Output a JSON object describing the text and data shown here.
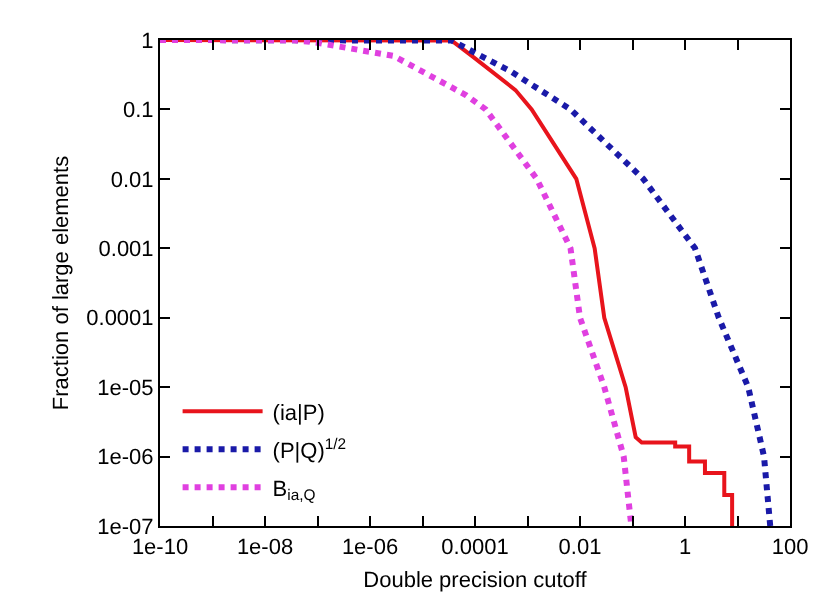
{
  "chart_data": {
    "type": "line",
    "xlabel": "Double precision cutoff",
    "ylabel": "Fraction of large elements",
    "log": "xy",
    "grid": false,
    "legend": "bottom left",
    "marker": "none",
    "xlim": [
      1e-10,
      100
    ],
    "ylim": [
      1e-07,
      1
    ],
    "xticks": [
      {
        "value": 1e-10,
        "label": "1e-10"
      },
      {
        "value": 1e-09,
        "label": null
      },
      {
        "value": 1e-08,
        "label": "1e-08"
      },
      {
        "value": 1e-07,
        "label": null
      },
      {
        "value": 1e-06,
        "label": "1e-06"
      },
      {
        "value": 1e-05,
        "label": null
      },
      {
        "value": 0.0001,
        "label": "0.0001"
      },
      {
        "value": 0.001,
        "label": null
      },
      {
        "value": 0.01,
        "label": "0.01"
      },
      {
        "value": 0.1,
        "label": null
      },
      {
        "value": 1,
        "label": "1"
      },
      {
        "value": 10,
        "label": null
      },
      {
        "value": 100,
        "label": "100"
      }
    ],
    "yticks": [
      1,
      0.1,
      0.01,
      0.001,
      0.0001,
      {
        "value": 1e-05,
        "label": "1e-05"
      },
      {
        "value": 1e-06,
        "label": "1e-06"
      },
      {
        "value": 1e-07,
        "label": "1e-07"
      }
    ],
    "series": [
      {
        "name": "(ia|P)",
        "color": "#e8141c",
        "line_style": "solid",
        "x": [
          1e-10,
          3.6e-05,
          8.7e-05,
          0.00059,
          0.0012,
          0.0085,
          0.019,
          0.029,
          0.074,
          0.115,
          0.15,
          0.65,
          0.65,
          1.2,
          1.2,
          2.4,
          2.4,
          5.6,
          5.6,
          7.9,
          7.9
        ],
        "values": [
          1,
          0.98,
          0.59,
          0.19,
          0.1,
          0.01,
          0.001,
          0.0001,
          1e-05,
          1.9e-06,
          1.6e-06,
          1.6e-06,
          1.4e-06,
          1.4e-06,
          8.5e-07,
          8.5e-07,
          5.8e-07,
          5.8e-07,
          2.8e-07,
          2.8e-07,
          1e-07
        ]
      },
      {
        "name": "(P|Q)$^{1/2}$",
        "color": "#1a1aa8",
        "line_style": "dotted",
        "x": [
          1e-10,
          3.6e-05,
          0.00049,
          0.0066,
          0.16,
          1.55,
          4.4,
          16,
          32,
          42
        ],
        "values": [
          1,
          0.98,
          0.35,
          0.1,
          0.01,
          0.001,
          0.0001,
          1e-05,
          1e-06,
          1e-07
        ]
      },
      {
        "name": "B$_{ia,Q}$",
        "color": "#e040e0",
        "line_style": "dotted",
        "x": [
          1e-10,
          3.6e-08,
          8.5e-08,
          2.8e-06,
          6.8e-05,
          0.00016,
          0.0015,
          0.0066,
          0.01,
          0.029,
          0.068,
          0.095
        ],
        "values": [
          1,
          0.99,
          0.93,
          0.59,
          0.16,
          0.1,
          0.01,
          0.001,
          0.0001,
          1e-05,
          1e-06,
          1e-07
        ]
      }
    ]
  }
}
